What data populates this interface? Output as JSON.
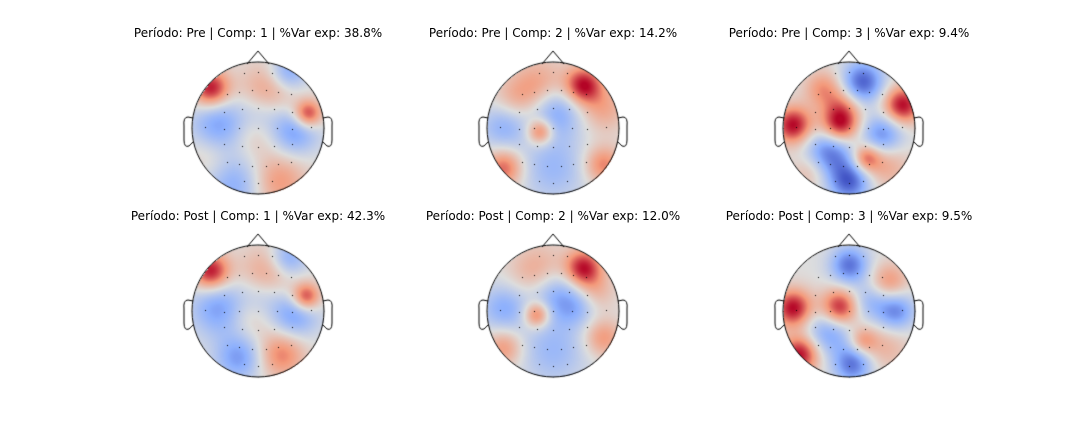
{
  "figure": {
    "background": "#ffffff",
    "colormap": [
      "#3b4cc0",
      "#8db0fe",
      "#dddddd",
      "#f49a7b",
      "#b40426"
    ]
  },
  "chart_data": [
    {
      "type": "heatmap",
      "subtype": "eeg-topomap",
      "title": "Período: Pre | Comp: 1 | %Var exp: 38.8%",
      "period": "Pre",
      "component": 1,
      "variance_explained_pct": 38.8,
      "blobs": [
        {
          "x": -0.72,
          "y": 0.6,
          "amp": 1.0,
          "r": 0.2
        },
        {
          "x": 0.75,
          "y": 0.22,
          "amp": 0.9,
          "r": 0.15
        },
        {
          "x": 0.15,
          "y": 0.55,
          "amp": 0.5,
          "r": 0.3
        },
        {
          "x": 0.05,
          "y": 0.2,
          "amp": -0.4,
          "r": 0.25
        },
        {
          "x": 0.55,
          "y": -0.05,
          "amp": -0.6,
          "r": 0.25
        },
        {
          "x": -0.6,
          "y": 0.05,
          "amp": -0.6,
          "r": 0.3
        },
        {
          "x": 0.45,
          "y": 0.85,
          "amp": -0.6,
          "r": 0.2
        },
        {
          "x": -0.35,
          "y": -0.85,
          "amp": -0.5,
          "r": 0.3
        },
        {
          "x": 0.3,
          "y": -0.8,
          "amp": 0.5,
          "r": 0.3
        },
        {
          "x": -0.05,
          "y": -0.05,
          "amp": 0.3,
          "r": 0.25
        },
        {
          "x": -0.75,
          "y": -0.4,
          "amp": 0.2,
          "r": 0.25
        }
      ]
    },
    {
      "type": "heatmap",
      "subtype": "eeg-topomap",
      "title": "Período: Pre | Comp: 2 | %Var exp: 14.2%",
      "period": "Pre",
      "component": 2,
      "variance_explained_pct": 14.2,
      "blobs": [
        {
          "x": 0.45,
          "y": 0.65,
          "amp": 1.0,
          "r": 0.2
        },
        {
          "x": -0.2,
          "y": 0.6,
          "amp": 0.6,
          "r": 0.3
        },
        {
          "x": 0.75,
          "y": 0.3,
          "amp": 0.4,
          "r": 0.25
        },
        {
          "x": 0.0,
          "y": 0.3,
          "amp": -0.7,
          "r": 0.3
        },
        {
          "x": -0.75,
          "y": 0.05,
          "amp": -0.5,
          "r": 0.25
        },
        {
          "x": -0.2,
          "y": -0.05,
          "amp": 0.8,
          "r": 0.14
        },
        {
          "x": 0.45,
          "y": -0.05,
          "amp": 0.0,
          "r": 0.25
        },
        {
          "x": -0.75,
          "y": -0.6,
          "amp": 0.7,
          "r": 0.2
        },
        {
          "x": 0.75,
          "y": -0.55,
          "amp": 0.6,
          "r": 0.2
        },
        {
          "x": 0.0,
          "y": -0.6,
          "amp": -0.4,
          "r": 0.35
        },
        {
          "x": -0.6,
          "y": 0.4,
          "amp": 0.3,
          "r": 0.25
        }
      ]
    },
    {
      "type": "heatmap",
      "subtype": "eeg-topomap",
      "title": "Período: Pre | Comp: 3 | %Var exp: 9.4%",
      "period": "Pre",
      "component": 3,
      "variance_explained_pct": 9.4,
      "blobs": [
        {
          "x": -0.85,
          "y": 0.05,
          "amp": 1.0,
          "r": 0.2
        },
        {
          "x": -0.15,
          "y": 0.05,
          "amp": 1.0,
          "r": 0.2
        },
        {
          "x": 0.8,
          "y": 0.35,
          "amp": 1.0,
          "r": 0.2
        },
        {
          "x": 0.2,
          "y": 0.7,
          "amp": -0.9,
          "r": 0.22
        },
        {
          "x": -0.4,
          "y": 0.6,
          "amp": 0.5,
          "r": 0.2
        },
        {
          "x": 0.5,
          "y": -0.1,
          "amp": -0.7,
          "r": 0.22
        },
        {
          "x": -0.3,
          "y": -0.35,
          "amp": -0.8,
          "r": 0.25
        },
        {
          "x": 0.0,
          "y": -0.8,
          "amp": -0.9,
          "r": 0.22
        },
        {
          "x": -0.1,
          "y": 0.35,
          "amp": 0.4,
          "r": 0.2
        },
        {
          "x": 0.55,
          "y": -0.55,
          "amp": 0.4,
          "r": 0.25
        },
        {
          "x": 0.25,
          "y": -0.45,
          "amp": 0.7,
          "r": 0.15
        },
        {
          "x": -0.6,
          "y": -0.65,
          "amp": 0.3,
          "r": 0.2
        }
      ]
    },
    {
      "type": "heatmap",
      "subtype": "eeg-topomap",
      "title": "Período: Post | Comp: 1 | %Var exp: 42.3%",
      "period": "Post",
      "component": 1,
      "variance_explained_pct": 42.3,
      "blobs": [
        {
          "x": -0.72,
          "y": 0.6,
          "amp": 1.0,
          "r": 0.2
        },
        {
          "x": 0.72,
          "y": 0.22,
          "amp": 0.9,
          "r": 0.15
        },
        {
          "x": 0.15,
          "y": 0.55,
          "amp": 0.5,
          "r": 0.3
        },
        {
          "x": 0.05,
          "y": 0.2,
          "amp": -0.4,
          "r": 0.25
        },
        {
          "x": 0.55,
          "y": -0.05,
          "amp": -0.6,
          "r": 0.25
        },
        {
          "x": -0.6,
          "y": 0.05,
          "amp": -0.6,
          "r": 0.3
        },
        {
          "x": 0.45,
          "y": 0.8,
          "amp": -0.6,
          "r": 0.2
        },
        {
          "x": -0.3,
          "y": -0.7,
          "amp": -0.6,
          "r": 0.25
        },
        {
          "x": 0.35,
          "y": -0.65,
          "amp": 0.6,
          "r": 0.25
        },
        {
          "x": -0.1,
          "y": -0.05,
          "amp": 0.3,
          "r": 0.25
        }
      ]
    },
    {
      "type": "heatmap",
      "subtype": "eeg-topomap",
      "title": "Período: Post | Comp: 2 | %Var exp: 12.0%",
      "period": "Post",
      "component": 2,
      "variance_explained_pct": 12.0,
      "blobs": [
        {
          "x": 0.45,
          "y": 0.65,
          "amp": 1.0,
          "r": 0.2
        },
        {
          "x": -0.2,
          "y": 0.55,
          "amp": 0.6,
          "r": 0.3
        },
        {
          "x": 0.0,
          "y": 0.3,
          "amp": -0.7,
          "r": 0.3
        },
        {
          "x": -0.75,
          "y": 0.05,
          "amp": -0.5,
          "r": 0.25
        },
        {
          "x": -0.25,
          "y": -0.05,
          "amp": 0.8,
          "r": 0.14
        },
        {
          "x": 0.35,
          "y": 0.05,
          "amp": -0.3,
          "r": 0.2
        },
        {
          "x": -0.75,
          "y": -0.55,
          "amp": 0.5,
          "r": 0.2
        },
        {
          "x": 0.75,
          "y": -0.4,
          "amp": 0.5,
          "r": 0.2
        },
        {
          "x": 0.0,
          "y": -0.6,
          "amp": -0.4,
          "r": 0.35
        },
        {
          "x": 0.65,
          "y": 0.3,
          "amp": 0.3,
          "r": 0.2
        }
      ]
    },
    {
      "type": "heatmap",
      "subtype": "eeg-topomap",
      "title": "Período: Post | Comp: 3 | %Var exp: 9.5%",
      "period": "Post",
      "component": 3,
      "variance_explained_pct": 9.5,
      "blobs": [
        {
          "x": -0.85,
          "y": 0.05,
          "amp": 1.0,
          "r": 0.2
        },
        {
          "x": -0.15,
          "y": 0.05,
          "amp": 1.0,
          "r": 0.2
        },
        {
          "x": -0.75,
          "y": -0.65,
          "amp": 1.0,
          "r": 0.2
        },
        {
          "x": 0.0,
          "y": 0.7,
          "amp": -0.8,
          "r": 0.2
        },
        {
          "x": 0.6,
          "y": 0.45,
          "amp": 0.5,
          "r": 0.2
        },
        {
          "x": 0.7,
          "y": 0.0,
          "amp": -0.7,
          "r": 0.2
        },
        {
          "x": -0.3,
          "y": -0.3,
          "amp": -0.6,
          "r": 0.25
        },
        {
          "x": 0.05,
          "y": -0.8,
          "amp": -0.8,
          "r": 0.2
        },
        {
          "x": 0.2,
          "y": -0.45,
          "amp": 0.5,
          "r": 0.15
        },
        {
          "x": 0.55,
          "y": -0.55,
          "amp": 0.3,
          "r": 0.25
        },
        {
          "x": 0.3,
          "y": 0.15,
          "amp": -0.4,
          "r": 0.2
        }
      ]
    }
  ]
}
